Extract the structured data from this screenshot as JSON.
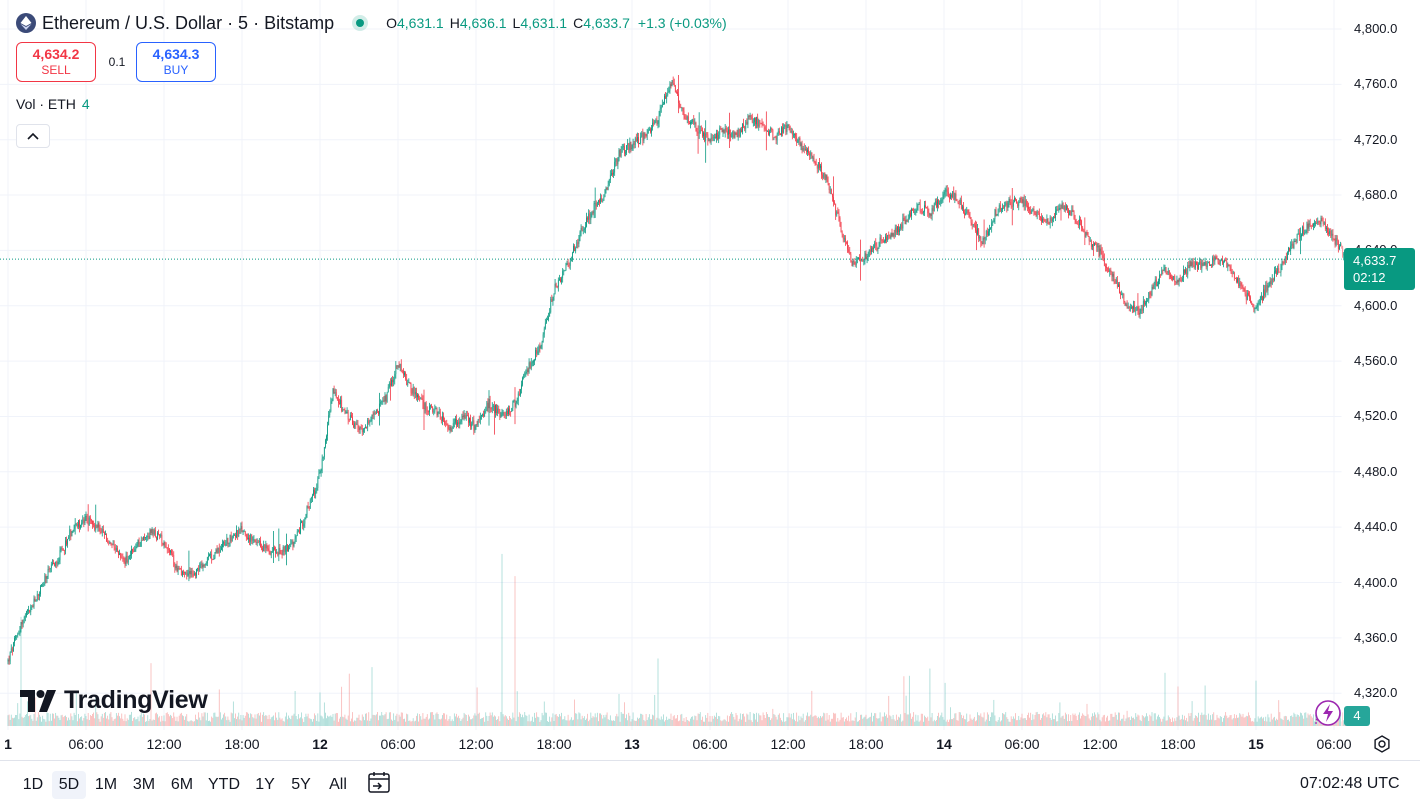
{
  "header": {
    "symbol_title": "Ethereum / U.S. Dollar · 5 · Bitstamp",
    "open_label": "O",
    "open": "4,631.1",
    "high_label": "H",
    "high": "4,636.1",
    "low_label": "L",
    "low": "4,631.1",
    "close_label": "C",
    "close": "4,633.7",
    "change": "+1.3 (+0.03%)"
  },
  "trade": {
    "sell_price": "4,634.2",
    "sell_label": "SELL",
    "spread": "0.1",
    "buy_price": "4,634.3",
    "buy_label": "BUY"
  },
  "volume_legend": {
    "label": "Vol · ETH",
    "value": "4"
  },
  "logo_text": "TradingView",
  "last_price": {
    "price": "4,633.7",
    "countdown": "02:12"
  },
  "last_volume": "4",
  "time_ranges": [
    "1D",
    "5D",
    "1M",
    "3M",
    "6M",
    "YTD",
    "1Y",
    "5Y",
    "All"
  ],
  "active_range": "5D",
  "clock": "07:02:48 UTC",
  "colors": {
    "up": "#089981",
    "down": "#f23645",
    "vol_up": "#26a69a",
    "vol_down": "#ef5350",
    "grid": "#f0f3fa"
  },
  "chart_data": {
    "type": "candlestick",
    "y_ticks": [
      "4,800.0",
      "4,760.0",
      "4,720.0",
      "4,680.0",
      "4,640.0",
      "4,600.0",
      "4,560.0",
      "4,520.0",
      "4,480.0",
      "4,440.0",
      "4,400.0",
      "4,360.0",
      "4,320.0"
    ],
    "y_tick_values": [
      4800,
      4760,
      4720,
      4680,
      4640,
      4600,
      4560,
      4520,
      4480,
      4440,
      4400,
      4360,
      4320
    ],
    "x_ticks": [
      "1",
      "06:00",
      "12:00",
      "18:00",
      "12",
      "06:00",
      "12:00",
      "18:00",
      "13",
      "06:00",
      "12:00",
      "18:00",
      "14",
      "06:00",
      "12:00",
      "18:00",
      "15",
      "06:00"
    ],
    "x_tick_hours": [
      0,
      6,
      12,
      18,
      24,
      30,
      36,
      42,
      48,
      54,
      60,
      66,
      72,
      78,
      84,
      90,
      96,
      102
    ],
    "bar_interval_minutes": 5,
    "last_bar_hour": 103,
    "ylim": [
      4296,
      4812
    ],
    "price_path": [
      [
        0,
        4343
      ],
      [
        1,
        4370
      ],
      [
        2,
        4385
      ],
      [
        3,
        4405
      ],
      [
        4,
        4420
      ],
      [
        5,
        4440
      ],
      [
        6,
        4445
      ],
      [
        7,
        4440
      ],
      [
        8,
        4425
      ],
      [
        9,
        4415
      ],
      [
        10,
        4428
      ],
      [
        11,
        4436
      ],
      [
        12,
        4430
      ],
      [
        13,
        4410
      ],
      [
        14,
        4405
      ],
      [
        15,
        4412
      ],
      [
        16,
        4422
      ],
      [
        17,
        4432
      ],
      [
        18,
        4438
      ],
      [
        19,
        4428
      ],
      [
        20,
        4424
      ],
      [
        21,
        4422
      ],
      [
        22,
        4428
      ],
      [
        23,
        4452
      ],
      [
        24,
        4478
      ],
      [
        25,
        4538
      ],
      [
        26,
        4522
      ],
      [
        27,
        4510
      ],
      [
        28,
        4518
      ],
      [
        29,
        4532
      ],
      [
        30,
        4558
      ],
      [
        31,
        4540
      ],
      [
        32,
        4528
      ],
      [
        33,
        4522
      ],
      [
        34,
        4512
      ],
      [
        35,
        4520
      ],
      [
        36,
        4512
      ],
      [
        37,
        4530
      ],
      [
        38,
        4520
      ],
      [
        39,
        4530
      ],
      [
        40,
        4555
      ],
      [
        41,
        4572
      ],
      [
        42,
        4612
      ],
      [
        43,
        4628
      ],
      [
        44,
        4652
      ],
      [
        45,
        4670
      ],
      [
        46,
        4682
      ],
      [
        47,
        4710
      ],
      [
        48,
        4716
      ],
      [
        49,
        4724
      ],
      [
        50,
        4735
      ],
      [
        51,
        4762
      ],
      [
        52,
        4738
      ],
      [
        53,
        4728
      ],
      [
        54,
        4718
      ],
      [
        55,
        4728
      ],
      [
        56,
        4722
      ],
      [
        57,
        4735
      ],
      [
        58,
        4732
      ],
      [
        59,
        4722
      ],
      [
        60,
        4730
      ],
      [
        61,
        4716
      ],
      [
        62,
        4706
      ],
      [
        63,
        4690
      ],
      [
        64,
        4658
      ],
      [
        65,
        4630
      ],
      [
        66,
        4635
      ],
      [
        67,
        4646
      ],
      [
        68,
        4650
      ],
      [
        69,
        4662
      ],
      [
        70,
        4672
      ],
      [
        71,
        4668
      ],
      [
        72,
        4682
      ],
      [
        73,
        4678
      ],
      [
        74,
        4662
      ],
      [
        75,
        4646
      ],
      [
        76,
        4668
      ],
      [
        77,
        4674
      ],
      [
        78,
        4676
      ],
      [
        79,
        4666
      ],
      [
        80,
        4660
      ],
      [
        81,
        4672
      ],
      [
        82,
        4666
      ],
      [
        83,
        4650
      ],
      [
        84,
        4638
      ],
      [
        85,
        4620
      ],
      [
        86,
        4602
      ],
      [
        87,
        4595
      ],
      [
        88,
        4612
      ],
      [
        89,
        4626
      ],
      [
        90,
        4618
      ],
      [
        91,
        4630
      ],
      [
        92,
        4628
      ],
      [
        93,
        4634
      ],
      [
        94,
        4628
      ],
      [
        95,
        4610
      ],
      [
        96,
        4598
      ],
      [
        97,
        4616
      ],
      [
        98,
        4630
      ],
      [
        99,
        4648
      ],
      [
        100,
        4658
      ],
      [
        101,
        4662
      ],
      [
        102,
        4648
      ],
      [
        103,
        4634
      ]
    ],
    "volume_ylim": [
      0,
      1000
    ],
    "volume_spikes": [
      [
        1,
        12
      ],
      [
        11,
        6
      ],
      [
        24,
        7
      ],
      [
        38,
        14
      ],
      [
        39,
        20
      ],
      [
        50,
        10
      ],
      [
        89,
        12
      ],
      [
        90,
        7
      ]
    ]
  }
}
